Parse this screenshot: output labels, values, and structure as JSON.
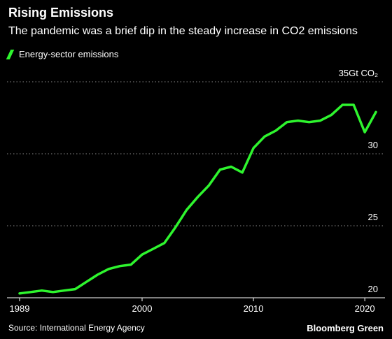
{
  "chart_data": {
    "type": "line",
    "title": "Rising Emissions",
    "subtitle": "The pandemic was a brief dip in the steady increase in CO2 emissions",
    "ylabel": "",
    "ylim": [
      20,
      35
    ],
    "y_ticks": [
      20,
      25,
      30,
      35
    ],
    "y_tick_labels": [
      "20",
      "25",
      "30",
      "35Gt CO₂"
    ],
    "xlim": [
      1989,
      2021.5
    ],
    "x_ticks": [
      1989,
      2000,
      2010,
      2020
    ],
    "x_tick_labels": [
      "1989",
      "2000",
      "2010",
      "2020"
    ],
    "grid": "horizontal dotted",
    "legend_position": "top-left",
    "series": [
      {
        "name": "Energy-sector emissions",
        "color": "#2ef52e",
        "x": [
          1989,
          1990,
          1991,
          1992,
          1993,
          1994,
          1995,
          1996,
          1997,
          1998,
          1999,
          2000,
          2001,
          2002,
          2003,
          2004,
          2005,
          2006,
          2007,
          2008,
          2009,
          2010,
          2011,
          2012,
          2013,
          2014,
          2015,
          2016,
          2017,
          2018,
          2019,
          2020,
          2021
        ],
        "values": [
          20.3,
          20.4,
          20.5,
          20.4,
          20.5,
          20.6,
          21.1,
          21.6,
          22.0,
          22.2,
          22.3,
          23.0,
          23.4,
          23.8,
          24.9,
          26.1,
          27.0,
          27.8,
          28.9,
          29.1,
          28.7,
          30.4,
          31.2,
          31.6,
          32.2,
          32.3,
          32.2,
          32.3,
          32.7,
          33.4,
          33.4,
          31.5,
          32.9
        ]
      }
    ]
  },
  "source": "Source: International Energy Agency",
  "brand": "Bloomberg Green",
  "colors": {
    "background": "#000000",
    "text": "#ffffff",
    "grid": "#8a8a8a",
    "axis": "#ffffff",
    "line": "#2ef52e"
  }
}
